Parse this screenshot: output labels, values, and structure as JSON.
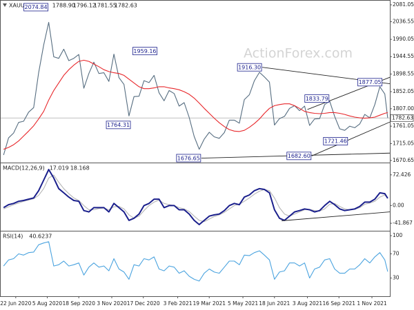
{
  "chart_data": [
    {
      "type": "line",
      "title": "XAUUSD Daily",
      "ohlc": {
        "values": [
          1788.9,
          1796.12,
          1781.55,
          1782.63
        ],
        "value_labels": [
          "1788.90",
          "1796.12",
          "1781.55",
          "1782.63"
        ]
      },
      "watermark": "ActionForex.com",
      "x": [
        "2020-06-05",
        "2020-06-12",
        "2020-06-19",
        "2020-06-26",
        "2020-07-03",
        "2020-07-10",
        "2020-07-17",
        "2020-07-24",
        "2020-07-31",
        "2020-08-07",
        "2020-08-14",
        "2020-08-21",
        "2020-08-28",
        "2020-09-04",
        "2020-09-11",
        "2020-09-18",
        "2020-09-25",
        "2020-10-02",
        "2020-10-09",
        "2020-10-16",
        "2020-10-23",
        "2020-10-30",
        "2020-11-06",
        "2020-11-13",
        "2020-11-20",
        "2020-11-27",
        "2020-12-04",
        "2020-12-11",
        "2020-12-18",
        "2020-12-25",
        "2021-01-01",
        "2021-01-08",
        "2021-01-15",
        "2021-01-22",
        "2021-01-29",
        "2021-02-05",
        "2021-02-12",
        "2021-02-19",
        "2021-02-26",
        "2021-03-05",
        "2021-03-12",
        "2021-03-19",
        "2021-03-26",
        "2021-04-02",
        "2021-04-09",
        "2021-04-16",
        "2021-04-23",
        "2021-04-30",
        "2021-05-07",
        "2021-05-14",
        "2021-05-21",
        "2021-05-28",
        "2021-06-04",
        "2021-06-11",
        "2021-06-18",
        "2021-06-25",
        "2021-07-02",
        "2021-07-09",
        "2021-07-16",
        "2021-07-23",
        "2021-07-30",
        "2021-08-06",
        "2021-08-13",
        "2021-08-20",
        "2021-08-27",
        "2021-09-03",
        "2021-09-10",
        "2021-09-17",
        "2021-09-24",
        "2021-10-01",
        "2021-10-08",
        "2021-10-15",
        "2021-10-22",
        "2021-10-29",
        "2021-11-05",
        "2021-11-12",
        "2021-11-19",
        "2021-11-23"
      ],
      "series": [
        {
          "color": "#566d80",
          "values": [
            1685,
            1730,
            1743,
            1771,
            1774,
            1798,
            1810,
            1902,
            1975,
            2035,
            1944,
            1940,
            1964,
            1934,
            1940,
            1950,
            1861,
            1900,
            1930,
            1900,
            1902,
            1879,
            1951,
            1889,
            1871,
            1788,
            1839,
            1840,
            1881,
            1876,
            1895,
            1849,
            1828,
            1855,
            1847,
            1814,
            1823,
            1784,
            1734,
            1700,
            1727,
            1745,
            1733,
            1729,
            1744,
            1777,
            1777,
            1769,
            1831,
            1844,
            1881,
            1903,
            1891,
            1877,
            1764,
            1781,
            1787,
            1808,
            1815,
            1802,
            1814,
            1763,
            1780,
            1781,
            1818,
            1827,
            1787,
            1754,
            1750,
            1761,
            1757,
            1767,
            1792,
            1783,
            1818,
            1865,
            1846,
            1782.63
          ]
        },
        {
          "color": "#e8262a",
          "values": [
            1700,
            1705,
            1712,
            1722,
            1735,
            1748,
            1762,
            1780,
            1800,
            1830,
            1855,
            1875,
            1895,
            1910,
            1922,
            1932,
            1935,
            1932,
            1925,
            1918,
            1910,
            1905,
            1902,
            1900,
            1895,
            1885,
            1875,
            1865,
            1860,
            1860,
            1862,
            1865,
            1865,
            1862,
            1860,
            1857,
            1852,
            1845,
            1835,
            1822,
            1808,
            1795,
            1782,
            1770,
            1760,
            1752,
            1748,
            1747,
            1750,
            1758,
            1768,
            1780,
            1795,
            1808,
            1815,
            1818,
            1820,
            1820,
            1815,
            1808,
            1800,
            1797,
            1795,
            1794,
            1795,
            1797,
            1797,
            1795,
            1792,
            1788,
            1785,
            1783,
            1782,
            1783,
            1785,
            1790,
            1795,
            1797
          ]
        }
      ],
      "xlim": [
        "2020-06-01",
        "2021-11-26"
      ],
      "ylim": [
        1665,
        2092
      ],
      "yticks": [
        2081.05,
        2036.55,
        1990.05,
        1944.55,
        1898.55,
        1852.05,
        {
          "value": 1807,
          "label": "1807.00"
        },
        1761.05,
        1715.05,
        1670.65
      ],
      "annotations": {
        "x": [
          "2020-08-07",
          "2021-01-06",
          "2020-11-30",
          "2021-03-08",
          "2021-06-01",
          "2021-08-09",
          "2021-09-03",
          "2021-09-29",
          "2021-11-16"
        ],
        "values": [
          2074.84,
          1959.16,
          1764.31,
          1676.65,
          1916.3,
          1682.6,
          1833.79,
          1721.46,
          1877.05
        ],
        "value_labels": [
          "2074.84",
          "1959.16",
          "1764.31",
          "1676.65",
          "1916.30",
          "1682.60",
          "1833.79",
          "1721.46",
          "1877.05"
        ]
      },
      "trendlines": [
        {
          "x": [
            "2021-06-01",
            "2021-11-26"
          ],
          "y": [
            1916.3,
            1873
          ]
        },
        {
          "x": [
            "2021-03-08",
            "2021-11-26"
          ],
          "y": [
            1676.65,
            1690
          ]
        },
        {
          "x": [
            "2021-08-09",
            "2021-11-26"
          ],
          "y": [
            1682.6,
            1772
          ]
        },
        {
          "x": [
            "2021-08-03",
            "2021-11-26"
          ],
          "y": [
            1805,
            1890
          ]
        }
      ]
    },
    {
      "type": "line",
      "title": "MACD(12,26,9)",
      "readings": [
        17.019,
        18.168
      ],
      "x": [
        "2020-06-05",
        "2020-06-12",
        "2020-06-19",
        "2020-06-26",
        "2020-07-03",
        "2020-07-10",
        "2020-07-17",
        "2020-07-24",
        "2020-07-31",
        "2020-08-07",
        "2020-08-14",
        "2020-08-21",
        "2020-08-28",
        "2020-09-04",
        "2020-09-11",
        "2020-09-18",
        "2020-09-25",
        "2020-10-02",
        "2020-10-09",
        "2020-10-16",
        "2020-10-23",
        "2020-10-30",
        "2020-11-06",
        "2020-11-13",
        "2020-11-20",
        "2020-11-27",
        "2020-12-04",
        "2020-12-11",
        "2020-12-18",
        "2020-12-25",
        "2021-01-01",
        "2021-01-08",
        "2021-01-15",
        "2021-01-22",
        "2021-01-29",
        "2021-02-05",
        "2021-02-12",
        "2021-02-19",
        "2021-02-26",
        "2021-03-05",
        "2021-03-12",
        "2021-03-19",
        "2021-03-26",
        "2021-04-02",
        "2021-04-09",
        "2021-04-16",
        "2021-04-23",
        "2021-04-30",
        "2021-05-07",
        "2021-05-14",
        "2021-05-21",
        "2021-05-28",
        "2021-06-04",
        "2021-06-11",
        "2021-06-18",
        "2021-06-25",
        "2021-07-02",
        "2021-07-09",
        "2021-07-16",
        "2021-07-23",
        "2021-07-30",
        "2021-08-06",
        "2021-08-13",
        "2021-08-20",
        "2021-08-27",
        "2021-09-03",
        "2021-09-10",
        "2021-09-17",
        "2021-09-24",
        "2021-10-01",
        "2021-10-08",
        "2021-10-15",
        "2021-10-22",
        "2021-10-29",
        "2021-11-05",
        "2021-11-12",
        "2021-11-19",
        "2021-11-23"
      ],
      "series": [
        {
          "color": "#b5b5b5",
          "values": [
            -8,
            -3,
            2,
            6,
            10,
            13,
            16,
            24,
            40,
            65,
            72,
            55,
            40,
            28,
            18,
            12,
            0,
            -10,
            -10,
            -7,
            -6,
            -10,
            -3,
            -2,
            -8,
            -22,
            -30,
            -25,
            -12,
            0,
            8,
            13,
            5,
            2,
            0,
            -5,
            -8,
            -14,
            -25,
            -35,
            -38,
            -32,
            -26,
            -22,
            -16,
            -8,
            0,
            3,
            10,
            18,
            27,
            34,
            38,
            35,
            18,
            -5,
            -20,
            -25,
            -20,
            -15,
            -10,
            -9,
            -12,
            -13,
            -8,
            3,
            5,
            -2,
            -8,
            -10,
            -9,
            -5,
            3,
            6,
            10,
            20,
            25,
            18.168
          ]
        },
        {
          "color": "#1a1f8c",
          "values": [
            -5,
            2,
            5,
            10,
            12,
            15,
            18,
            35,
            60,
            85,
            65,
            40,
            30,
            20,
            12,
            10,
            -12,
            -15,
            -5,
            -5,
            -5,
            -15,
            5,
            -5,
            -15,
            -35,
            -30,
            -20,
            0,
            5,
            15,
            15,
            -5,
            0,
            0,
            -10,
            -10,
            -20,
            -35,
            -45,
            -35,
            -25,
            -22,
            -20,
            -12,
            0,
            5,
            2,
            20,
            25,
            35,
            40,
            38,
            30,
            -10,
            -30,
            -35,
            -25,
            -15,
            -12,
            -8,
            -10,
            -15,
            -12,
            0,
            10,
            2,
            -8,
            -12,
            -10,
            -8,
            -2,
            8,
            8,
            15,
            30,
            28,
            17.019
          ]
        }
      ],
      "xlim": [
        "2020-06-01",
        "2021-11-26"
      ],
      "ylim": [
        -59.6,
        99.8
      ],
      "yticks": [
        72.426,
        {
          "value": 0,
          "label": "0.00"
        },
        -41.867
      ],
      "trendlines": [
        {
          "x": [
            "2021-06-28",
            "2021-11-26"
          ],
          "y": [
            -36,
            -15
          ]
        }
      ]
    },
    {
      "type": "line",
      "title": "RSI(14)",
      "readings": [
        40.6237
      ],
      "x": [
        "2020-06-05",
        "2020-06-12",
        "2020-06-19",
        "2020-06-26",
        "2020-07-03",
        "2020-07-10",
        "2020-07-17",
        "2020-07-24",
        "2020-07-31",
        "2020-08-07",
        "2020-08-14",
        "2020-08-21",
        "2020-08-28",
        "2020-09-04",
        "2020-09-11",
        "2020-09-18",
        "2020-09-25",
        "2020-10-02",
        "2020-10-09",
        "2020-10-16",
        "2020-10-23",
        "2020-10-30",
        "2020-11-06",
        "2020-11-13",
        "2020-11-20",
        "2020-11-27",
        "2020-12-04",
        "2020-12-11",
        "2020-12-18",
        "2020-12-25",
        "2021-01-01",
        "2021-01-08",
        "2021-01-15",
        "2021-01-22",
        "2021-01-29",
        "2021-02-05",
        "2021-02-12",
        "2021-02-19",
        "2021-02-26",
        "2021-03-05",
        "2021-03-12",
        "2021-03-19",
        "2021-03-26",
        "2021-04-02",
        "2021-04-09",
        "2021-04-16",
        "2021-04-23",
        "2021-04-30",
        "2021-05-07",
        "2021-05-14",
        "2021-05-21",
        "2021-05-28",
        "2021-06-04",
        "2021-06-11",
        "2021-06-18",
        "2021-06-25",
        "2021-07-02",
        "2021-07-09",
        "2021-07-16",
        "2021-07-23",
        "2021-07-30",
        "2021-08-06",
        "2021-08-13",
        "2021-08-20",
        "2021-08-27",
        "2021-09-03",
        "2021-09-10",
        "2021-09-17",
        "2021-09-24",
        "2021-10-01",
        "2021-10-08",
        "2021-10-15",
        "2021-10-22",
        "2021-10-29",
        "2021-11-05",
        "2021-11-12",
        "2021-11-19",
        "2021-11-23"
      ],
      "series": [
        {
          "color": "#4aa3df",
          "values": [
            50,
            60,
            62,
            70,
            68,
            72,
            73,
            85,
            88,
            90,
            50,
            52,
            58,
            50,
            52,
            55,
            35,
            48,
            55,
            48,
            50,
            42,
            62,
            45,
            40,
            28,
            52,
            50,
            62,
            60,
            65,
            45,
            42,
            50,
            48,
            38,
            42,
            33,
            28,
            25,
            38,
            45,
            40,
            38,
            48,
            58,
            58,
            52,
            68,
            67,
            72,
            75,
            68,
            60,
            28,
            40,
            42,
            55,
            55,
            50,
            55,
            30,
            45,
            48,
            60,
            62,
            45,
            38,
            38,
            45,
            45,
            52,
            62,
            55,
            65,
            72,
            60,
            40.6237
          ]
        }
      ],
      "xlim": [
        "2020-06-01",
        "2021-11-26"
      ],
      "ylim": [
        0,
        107
      ],
      "yticks": [
        100,
        70,
        30
      ],
      "xticks": [
        {
          "value": "2020-06-22",
          "label": "22 Jun 2020"
        },
        {
          "value": "2020-08-05",
          "label": "5 Aug 2020"
        },
        {
          "value": "2020-09-18",
          "label": "18 Sep 2020"
        },
        {
          "value": "2020-11-03",
          "label": "3 Nov 2020"
        },
        {
          "value": "2020-12-17",
          "label": "17 Dec 2020"
        },
        {
          "value": "2021-02-03",
          "label": "3 Feb 2021"
        },
        {
          "value": "2021-03-19",
          "label": "19 Mar 2021"
        },
        {
          "value": "2021-05-05",
          "label": "5 May 2021"
        },
        {
          "value": "2021-06-18",
          "label": "18 Jun 2021"
        },
        {
          "value": "2021-08-03",
          "label": "3 Aug 2021"
        },
        {
          "value": "2021-09-16",
          "label": "16 Sep 2021"
        },
        {
          "value": "2021-11-01",
          "label": "1 Nov 2021"
        }
      ]
    }
  ]
}
